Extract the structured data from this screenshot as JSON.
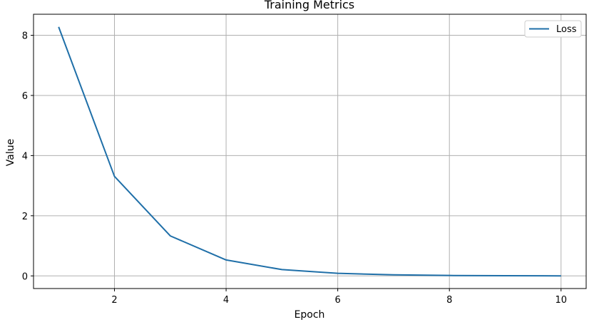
{
  "chart_data": {
    "type": "line",
    "title": "Training Metrics",
    "xlabel": "Epoch",
    "ylabel": "Value",
    "xlim": [
      0.55,
      10.45
    ],
    "ylim": [
      -0.42,
      8.7
    ],
    "xticks": [
      2,
      4,
      6,
      8,
      10
    ],
    "yticks": [
      0,
      2,
      4,
      6,
      8
    ],
    "grid": true,
    "legend": "top-right",
    "x": [
      1,
      2,
      3,
      4,
      5,
      6,
      7,
      8,
      9,
      10
    ],
    "series": [
      {
        "name": "Loss",
        "color": "#1f6fa8",
        "values": [
          8.28,
          3.31,
          1.33,
          0.53,
          0.21,
          0.085,
          0.035,
          0.014,
          0.006,
          0.002
        ]
      }
    ]
  }
}
